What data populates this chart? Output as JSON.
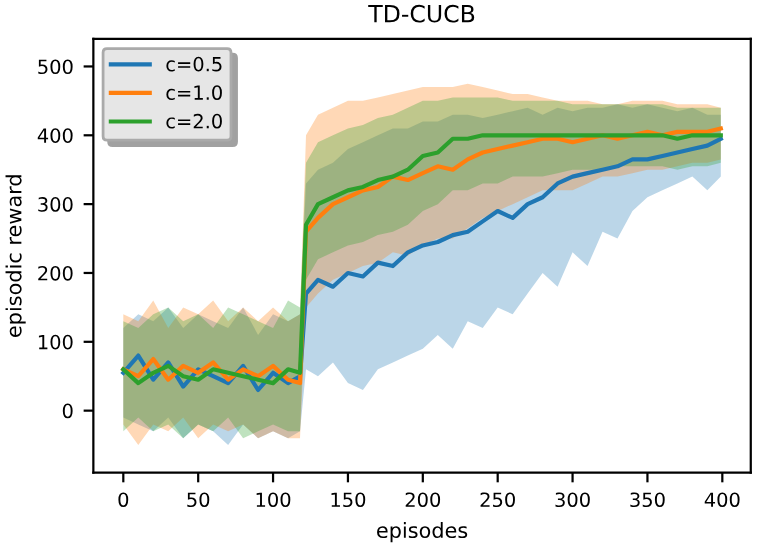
{
  "chart_data": {
    "type": "line",
    "title": "TD-CUCB",
    "xlabel": "episodes",
    "ylabel": "episodic reward",
    "x": [
      0,
      10,
      20,
      30,
      40,
      50,
      60,
      70,
      80,
      90,
      100,
      110,
      118,
      122,
      130,
      140,
      150,
      160,
      170,
      180,
      190,
      200,
      210,
      220,
      230,
      240,
      250,
      260,
      270,
      280,
      290,
      300,
      310,
      320,
      330,
      340,
      350,
      360,
      370,
      380,
      390,
      399
    ],
    "series": [
      {
        "name": "c=0.5",
        "color": "#1f77b4",
        "values": [
          55,
          80,
          45,
          70,
          35,
          60,
          50,
          40,
          65,
          30,
          55,
          40,
          50,
          170,
          190,
          180,
          200,
          195,
          215,
          210,
          230,
          240,
          245,
          255,
          260,
          275,
          290,
          280,
          300,
          310,
          330,
          340,
          345,
          350,
          355,
          365,
          365,
          370,
          375,
          380,
          385,
          395
        ],
        "lower": [
          -10,
          -20,
          -30,
          -10,
          -40,
          -20,
          -30,
          -50,
          -20,
          -40,
          -30,
          -40,
          -30,
          60,
          50,
          70,
          40,
          30,
          60,
          70,
          80,
          90,
          110,
          90,
          130,
          120,
          150,
          140,
          170,
          200,
          180,
          230,
          210,
          260,
          250,
          290,
          310,
          320,
          330,
          340,
          320,
          340
        ],
        "upper": [
          120,
          140,
          130,
          150,
          120,
          140,
          130,
          120,
          150,
          110,
          140,
          130,
          140,
          330,
          350,
          360,
          380,
          390,
          400,
          410,
          410,
          420,
          420,
          430,
          430,
          425,
          430,
          435,
          440,
          430,
          440,
          435,
          440,
          440,
          445,
          440,
          445,
          440,
          435,
          440,
          430,
          430
        ]
      },
      {
        "name": "c=1.0",
        "color": "#ff7f0e",
        "values": [
          60,
          50,
          75,
          45,
          65,
          55,
          70,
          45,
          60,
          50,
          65,
          45,
          40,
          260,
          280,
          300,
          310,
          320,
          325,
          340,
          335,
          345,
          355,
          350,
          365,
          375,
          380,
          385,
          390,
          395,
          395,
          390,
          395,
          400,
          395,
          400,
          405,
          400,
          405,
          405,
          405,
          410
        ],
        "lower": [
          -20,
          -50,
          -20,
          -30,
          -10,
          -40,
          -20,
          -30,
          -20,
          -40,
          -30,
          -40,
          -40,
          150,
          170,
          190,
          200,
          210,
          215,
          230,
          225,
          240,
          250,
          250,
          265,
          280,
          290,
          300,
          310,
          320,
          320,
          320,
          330,
          340,
          340,
          345,
          350,
          350,
          355,
          360,
          360,
          365
        ],
        "upper": [
          140,
          130,
          160,
          120,
          150,
          140,
          160,
          130,
          150,
          130,
          150,
          130,
          140,
          400,
          430,
          440,
          450,
          450,
          455,
          460,
          465,
          470,
          470,
          470,
          475,
          470,
          465,
          460,
          460,
          455,
          450,
          450,
          450,
          445,
          445,
          450,
          450,
          450,
          445,
          445,
          445,
          440
        ]
      },
      {
        "name": "c=2.0",
        "color": "#2ca02c",
        "values": [
          60,
          40,
          55,
          65,
          50,
          45,
          60,
          55,
          50,
          45,
          40,
          60,
          55,
          270,
          300,
          310,
          320,
          325,
          335,
          340,
          350,
          370,
          375,
          395,
          395,
          400,
          400,
          400,
          400,
          400,
          400,
          400,
          400,
          400,
          400,
          400,
          400,
          400,
          395,
          400,
          400,
          400
        ],
        "lower": [
          -30,
          -10,
          -30,
          -20,
          -40,
          -20,
          -30,
          -10,
          -40,
          -30,
          -20,
          -30,
          -30,
          190,
          220,
          230,
          240,
          245,
          255,
          260,
          270,
          290,
          300,
          320,
          320,
          330,
          330,
          340,
          340,
          340,
          345,
          350,
          350,
          350,
          355,
          355,
          355,
          355,
          350,
          355,
          355,
          360
        ],
        "upper": [
          130,
          120,
          140,
          150,
          130,
          140,
          120,
          150,
          140,
          130,
          120,
          160,
          150,
          360,
          390,
          400,
          410,
          415,
          425,
          430,
          440,
          450,
          450,
          455,
          455,
          455,
          455,
          450,
          450,
          450,
          450,
          445,
          445,
          445,
          445,
          445,
          445,
          445,
          440,
          440,
          440,
          440
        ]
      }
    ],
    "xlim": [
      -20,
      419
    ],
    "ylim": [
      -90,
      540
    ],
    "xticks": [
      0,
      50,
      100,
      150,
      200,
      250,
      300,
      350,
      400
    ],
    "yticks": [
      0,
      100,
      200,
      300,
      400,
      500
    ],
    "legend": "top left",
    "grid": false
  }
}
